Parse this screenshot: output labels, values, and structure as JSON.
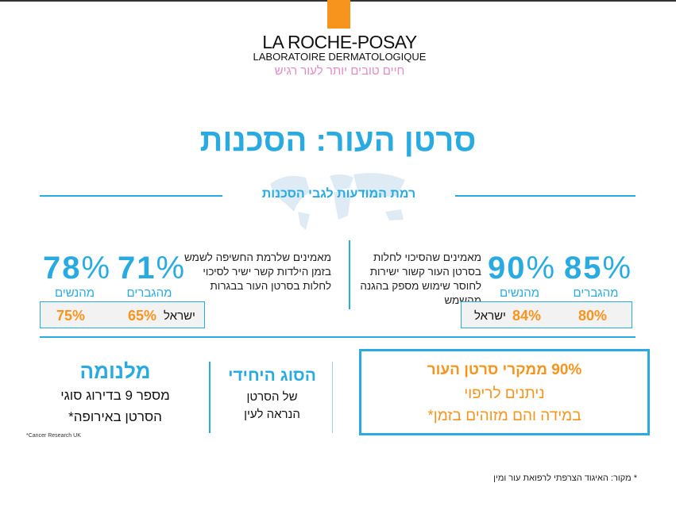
{
  "logo": {
    "brand": "LA ROCHE-POSAY",
    "subtitle": "LABORATOIRE DERMATOLOGIQUE",
    "tagline": "חיים טובים יותר לעור רגיש"
  },
  "title": "סרטן העור: הסכנות",
  "subtitle": "רמת המודעות לגבי הסכנות",
  "left_stat": {
    "description": [
      "מאמינים שלרמת החשיפה לשמש",
      "בזמן הילדות קשר ישיר לסיכוי",
      "לחלות בסרטן העור בבגרות"
    ],
    "women": {
      "value": "78",
      "pct": "%",
      "label": "מהנשים"
    },
    "men": {
      "value": "71",
      "pct": "%",
      "label": "מהגברים"
    },
    "israel": {
      "label": "ישראל",
      "men": "65%",
      "women": "75%"
    }
  },
  "right_stat": {
    "description": [
      "מאמינים שהסיכוי לחלות",
      "בסרטן העור קשור ישירות",
      "לחוסר שימוש מספק בהגנה",
      "מהשמש"
    ],
    "women": {
      "value": "90",
      "pct": "%",
      "label": "מהנשים"
    },
    "men": {
      "value": "85",
      "pct": "%",
      "label": "מהגברים"
    },
    "israel": {
      "label": "ישראל",
      "women": "84%",
      "men": "80%"
    }
  },
  "curable": {
    "line1": "90% ממקרי סרטן העור",
    "line2": "ניתנים לריפוי",
    "line3": "במידה והם מזוהים בזמן*"
  },
  "eye": {
    "heading": "הסוג היחידי",
    "line1": "של הסרטן",
    "line2": "הנראה לעין"
  },
  "melanoma": {
    "heading": "מלנומה",
    "line1": "מספר 9 בדירוג סוגי",
    "line2": "הסרטן באירופה*",
    "source": "*Cancer Research UK"
  },
  "footer": "* מקור: האיגוד הצרפתי לרפואת עור ומין",
  "colors": {
    "blue": "#29abe2",
    "orange": "#f7941d",
    "pink": "#e28cc4"
  }
}
